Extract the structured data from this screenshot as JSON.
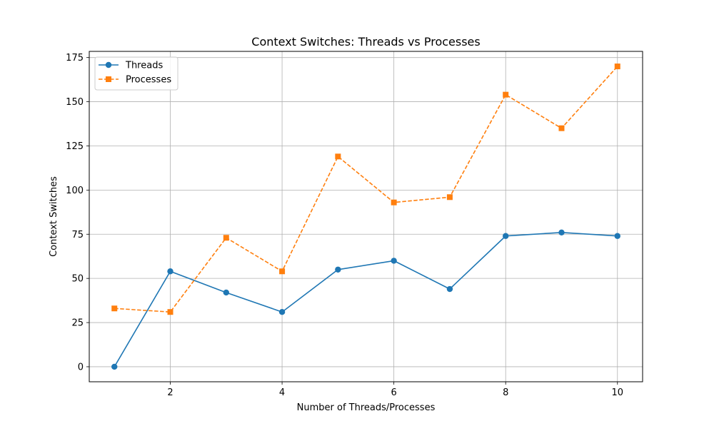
{
  "chart_data": {
    "type": "line",
    "title": "Context Switches: Threads vs Processes",
    "xlabel": "Number of Threads/Processes",
    "ylabel": "Context Switches",
    "x": [
      1,
      2,
      3,
      4,
      5,
      6,
      7,
      8,
      9,
      10
    ],
    "xlim": [
      0.55,
      10.45
    ],
    "ylim": [
      -8.5,
      178.5
    ],
    "xticks": [
      2,
      4,
      6,
      8,
      10
    ],
    "yticks": [
      0,
      25,
      50,
      75,
      100,
      125,
      150,
      175
    ],
    "grid": true,
    "legend_position": "top-left",
    "series": [
      {
        "name": "Threads",
        "values": [
          0,
          54,
          42,
          31,
          55,
          60,
          44,
          74,
          76,
          74
        ],
        "color": "#1f77b4",
        "line_style": "solid",
        "marker": "circle"
      },
      {
        "name": "Processes",
        "values": [
          33,
          31,
          73,
          54,
          119,
          93,
          96,
          154,
          135,
          170
        ],
        "color": "#ff7f0e",
        "line_style": "dashed",
        "marker": "square"
      }
    ]
  }
}
